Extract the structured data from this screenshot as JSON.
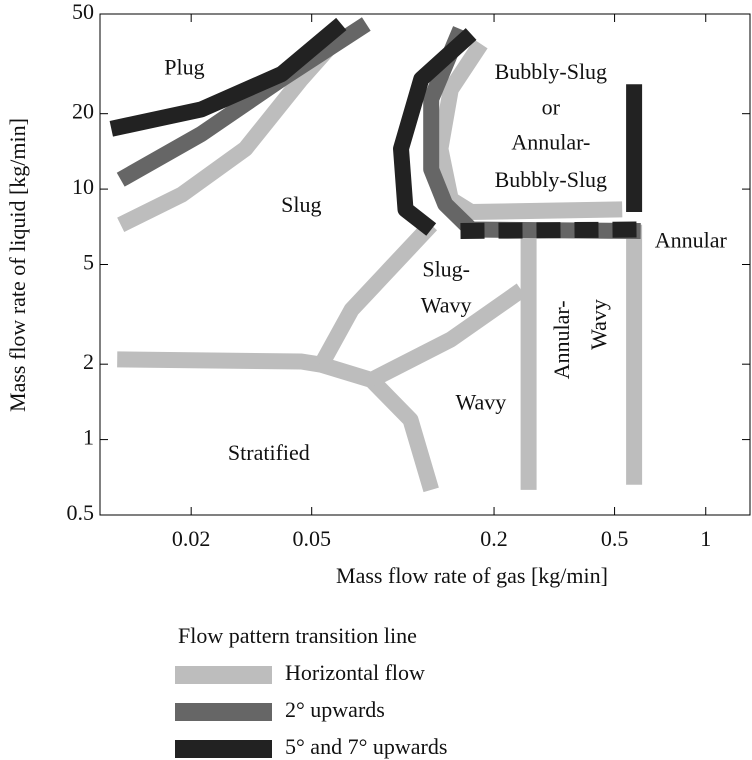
{
  "chart_data": {
    "type": "line",
    "xlabel": "Mass flow rate of gas [kg/min]",
    "ylabel": "Mass flow rate of liquid [kg/min]",
    "xscale": "log",
    "yscale": "log",
    "xlim": [
      0.01,
      1.4
    ],
    "ylim": [
      0.5,
      50
    ],
    "xticks": [
      0.02,
      0.05,
      0.2,
      0.5,
      1
    ],
    "yticks": [
      0.5,
      1,
      2,
      5,
      10,
      20,
      50
    ],
    "legend_title": "Flow pattern transition line",
    "series": [
      {
        "name": "Horizontal flow",
        "color": "#bdbdbd",
        "lines": [
          {
            "x": [
              0.0117,
              0.0186,
              0.0302,
              0.0462,
              0.0626
            ],
            "y": [
              7.2,
              9.5,
              14.5,
              27.5,
              41.6
            ]
          },
          {
            "x": [
              0.0114,
              0.0462,
              0.0538,
              0.0788,
              0.106,
              0.124
            ],
            "y": [
              2.09,
              2.05,
              1.99,
              1.73,
              1.2,
              0.63
            ]
          },
          {
            "x": [
              0.0538,
              0.0677,
              0.124
            ],
            "y": [
              1.99,
              3.3,
              7.2
            ]
          },
          {
            "x": [
              0.0788,
              0.144,
              0.246
            ],
            "y": [
              1.73,
              2.51,
              3.95
            ]
          },
          {
            "x": [
              0.26,
              0.26
            ],
            "y": [
              7.2,
              0.63
            ]
          },
          {
            "x": [
              0.58,
              0.58
            ],
            "y": [
              7.2,
              0.66
            ]
          },
          {
            "x": [
              0.181,
              0.144,
              0.133,
              0.144,
              0.168,
              0.53
            ],
            "y": [
              38,
              25,
              14.5,
              9.1,
              8.1,
              8.3
            ]
          }
        ]
      },
      {
        "name": "2° upwards",
        "color": "#666666",
        "lines": [
          {
            "x": [
              0.0117,
              0.0216,
              0.0398,
              0.0757
            ],
            "y": [
              10.9,
              16.6,
              27.5,
              45.6
            ]
          },
          {
            "x": [
              0.155,
              0.124,
              0.124,
              0.138,
              0.168,
              0.61
            ],
            "y": [
              43.5,
              22.9,
              12.0,
              8.7,
              6.9,
              6.8
            ]
          }
        ]
      },
      {
        "name": "5° and 7° upwards",
        "color": "#222222",
        "lines": [
          {
            "x": [
              0.0109,
              0.0216,
              0.0398,
              0.0626
            ],
            "y": [
              17.4,
              20.8,
              28.8,
              45.6
            ]
          },
          {
            "x": [
              0.168,
              0.115,
              0.0986,
              0.102,
              0.124
            ],
            "y": [
              41.6,
              27.5,
              14.5,
              8.3,
              6.9
            ]
          },
          {
            "x": [
              0.155,
              0.61
            ],
            "y": [
              6.8,
              6.9
            ],
            "dashed": true
          },
          {
            "x": [
              0.58,
              0.58
            ],
            "y": [
              26.2,
              8.1
            ]
          }
        ]
      }
    ],
    "annotations": [
      {
        "text": "Plug",
        "x": 0.019,
        "y": 30.1
      },
      {
        "text": "Bubbly-Slug",
        "x": 0.308,
        "y": 28.8
      },
      {
        "text": "or",
        "x": 0.308,
        "y": 20.8
      },
      {
        "text": "Annular-",
        "x": 0.308,
        "y": 15.1
      },
      {
        "text": "Bubbly-Slug",
        "x": 0.308,
        "y": 10.7
      },
      {
        "text": "Slug",
        "x": 0.0462,
        "y": 8.5
      },
      {
        "text": "Slug-",
        "x": 0.139,
        "y": 4.69
      },
      {
        "text": "Wavy",
        "x": 0.139,
        "y": 3.37
      },
      {
        "text": "Annular",
        "x": 0.893,
        "y": 6.12
      },
      {
        "text": "Annular-",
        "x": 0.34,
        "y": 2.5,
        "rotate": -90
      },
      {
        "text": "Wavy",
        "x": 0.451,
        "y": 2.88,
        "rotate": -90
      },
      {
        "text": "Wavy",
        "x": 0.181,
        "y": 1.38
      },
      {
        "text": "Stratified",
        "x": 0.0361,
        "y": 0.87
      }
    ]
  }
}
